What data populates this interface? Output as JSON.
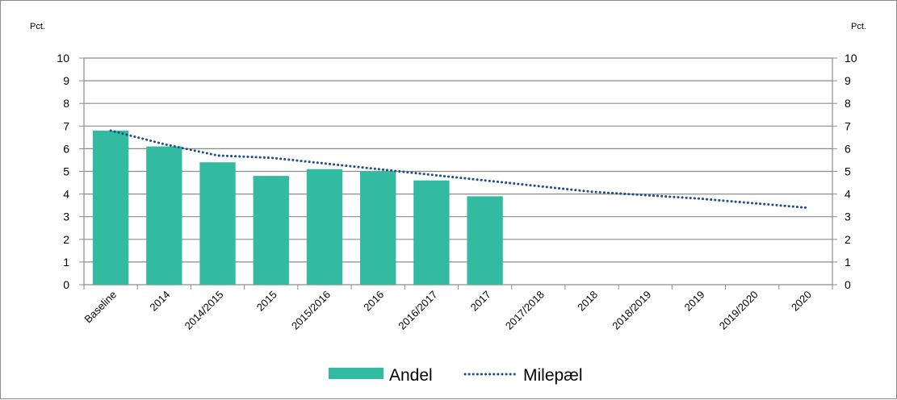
{
  "chart_data": {
    "type": "bar",
    "title": "",
    "left_unit": "Pct.",
    "right_unit": "Pct.",
    "ylim": [
      0,
      10
    ],
    "yticks": [
      "0",
      "1",
      "2",
      "3",
      "4",
      "5",
      "6",
      "7",
      "8",
      "9",
      "10"
    ],
    "grid": true,
    "legend_position": "bottom",
    "categories": [
      "Baseline",
      "2014",
      "2014/2015",
      "2015",
      "2015/2016",
      "2016",
      "2016/2017",
      "2017",
      "2017/2018",
      "2018",
      "2018/2019",
      "2019",
      "2019/2020",
      "2020"
    ],
    "series": [
      {
        "name": "Andel",
        "type": "bar",
        "color": "#33bba2",
        "values": [
          6.8,
          6.1,
          5.4,
          4.8,
          5.1,
          5.0,
          4.6,
          3.9,
          null,
          null,
          null,
          null,
          null,
          null
        ]
      },
      {
        "name": "Milepæl",
        "type": "line",
        "style": "dotted",
        "color": "#1f4e8c",
        "values": [
          6.8,
          6.2,
          5.7,
          5.6,
          5.35,
          5.1,
          4.85,
          4.6,
          4.35,
          4.1,
          3.95,
          3.8,
          3.6,
          3.4
        ]
      }
    ]
  }
}
